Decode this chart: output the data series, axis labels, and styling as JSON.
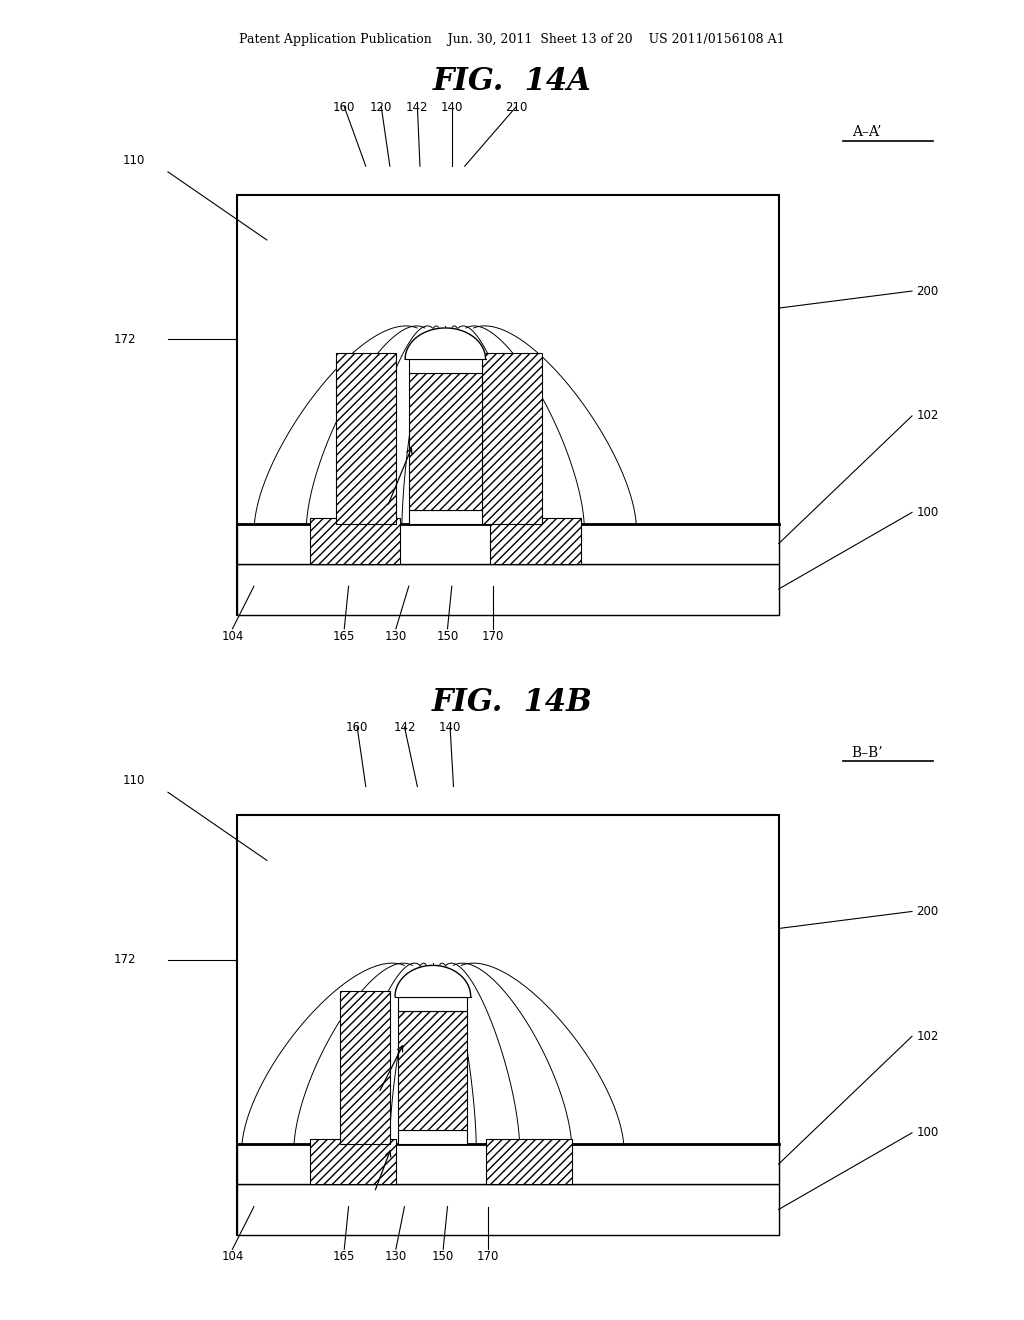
{
  "bg_color": "#ffffff",
  "header_text": "Patent Application Publication    Jun. 30, 2011  Sheet 13 of 20    US 2011/0156108 A1",
  "fig_title_A": "FIG.  14A",
  "fig_title_B": "FIG.  14B",
  "section_label_A": "A–A’",
  "section_label_B": "B–B’"
}
